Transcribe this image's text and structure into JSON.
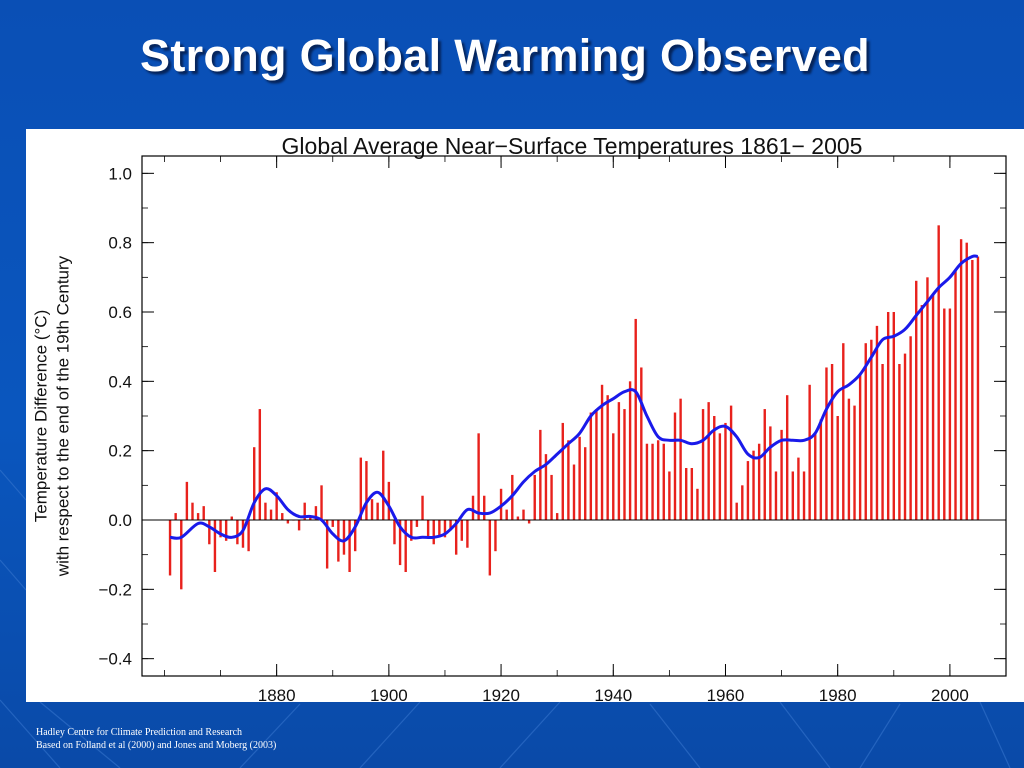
{
  "slide": {
    "title": "Strong Global Warming Observed",
    "footer_lines": [
      "Hadley Centre for Climate Prediction and Research",
      "Based on Folland et al (2000) and Jones and Moberg (2003)"
    ]
  },
  "colors": {
    "background": "#0a50b8",
    "bars": "#e8211c",
    "smooth_line": "#1a1aea",
    "axis": "#000000"
  },
  "chart_data": {
    "type": "bar",
    "title": "Global Average Near−Surface Temperatures 1861− 2005",
    "ylabel_lines": [
      "Temperature Difference (°C)",
      "with respect to the end of the 19th Century"
    ],
    "xlabel": "",
    "xlim": [
      1856,
      2010
    ],
    "ylim": [
      -0.45,
      1.05
    ],
    "xticks": [
      1880,
      1900,
      1920,
      1940,
      1960,
      1980,
      2000
    ],
    "yticks": [
      -0.4,
      -0.2,
      0.0,
      0.2,
      0.4,
      0.6,
      0.8,
      1.0
    ],
    "ytick_labels": [
      "−0.4",
      "−0.2",
      "0.0",
      "0.2",
      "0.4",
      "0.6",
      "0.8",
      "1.0"
    ],
    "grid": false,
    "series": [
      {
        "kind": "bar",
        "years": [
          1861,
          1862,
          1863,
          1864,
          1865,
          1866,
          1867,
          1868,
          1869,
          1870,
          1871,
          1872,
          1873,
          1874,
          1875,
          1876,
          1877,
          1878,
          1879,
          1880,
          1881,
          1882,
          1883,
          1884,
          1885,
          1886,
          1887,
          1888,
          1889,
          1890,
          1891,
          1892,
          1893,
          1894,
          1895,
          1896,
          1897,
          1898,
          1899,
          1900,
          1901,
          1902,
          1903,
          1904,
          1905,
          1906,
          1907,
          1908,
          1909,
          1910,
          1911,
          1912,
          1913,
          1914,
          1915,
          1916,
          1917,
          1918,
          1919,
          1920,
          1921,
          1922,
          1923,
          1924,
          1925,
          1926,
          1927,
          1928,
          1929,
          1930,
          1931,
          1932,
          1933,
          1934,
          1935,
          1936,
          1937,
          1938,
          1939,
          1940,
          1941,
          1942,
          1943,
          1944,
          1945,
          1946,
          1947,
          1948,
          1949,
          1950,
          1951,
          1952,
          1953,
          1954,
          1955,
          1956,
          1957,
          1958,
          1959,
          1960,
          1961,
          1962,
          1963,
          1964,
          1965,
          1966,
          1967,
          1968,
          1969,
          1970,
          1971,
          1972,
          1973,
          1974,
          1975,
          1976,
          1977,
          1978,
          1979,
          1980,
          1981,
          1982,
          1983,
          1984,
          1985,
          1986,
          1987,
          1988,
          1989,
          1990,
          1991,
          1992,
          1993,
          1994,
          1995,
          1996,
          1997,
          1998,
          1999,
          2000,
          2001,
          2002,
          2003,
          2004,
          2005
        ],
        "values": [
          -0.16,
          0.02,
          -0.2,
          0.11,
          0.05,
          0.02,
          0.04,
          -0.07,
          -0.15,
          -0.05,
          -0.06,
          0.01,
          -0.07,
          -0.08,
          -0.09,
          0.21,
          0.32,
          0.05,
          0.03,
          0.08,
          0.02,
          -0.01,
          0.0,
          -0.03,
          0.05,
          0.01,
          0.04,
          0.1,
          -0.14,
          -0.02,
          -0.12,
          -0.1,
          -0.15,
          -0.09,
          0.18,
          0.17,
          0.06,
          0.05,
          0.2,
          0.11,
          -0.07,
          -0.13,
          -0.15,
          -0.06,
          -0.02,
          0.07,
          -0.05,
          -0.07,
          -0.05,
          -0.05,
          -0.03,
          -0.1,
          -0.06,
          -0.08,
          0.07,
          0.25,
          0.07,
          -0.16,
          -0.09,
          0.09,
          0.03,
          0.13,
          0.01,
          0.03,
          -0.01,
          0.13,
          0.26,
          0.19,
          0.13,
          0.02,
          0.28,
          0.23,
          0.16,
          0.24,
          0.21,
          0.31,
          0.32,
          0.39,
          0.36,
          0.25,
          0.34,
          0.32,
          0.4,
          0.58,
          0.44,
          0.22,
          0.22,
          0.23,
          0.22,
          0.14,
          0.31,
          0.35,
          0.15,
          0.15,
          0.09,
          0.32,
          0.34,
          0.3,
          0.25,
          0.28,
          0.33,
          0.05,
          0.1,
          0.17,
          0.2,
          0.22,
          0.32,
          0.27,
          0.14,
          0.26,
          0.36,
          0.14,
          0.18,
          0.14,
          0.39,
          0.25,
          0.29,
          0.44,
          0.45,
          0.3,
          0.51,
          0.35,
          0.33,
          0.42,
          0.51,
          0.52,
          0.56,
          0.45,
          0.6,
          0.6,
          0.45,
          0.48,
          0.53,
          0.69,
          0.62,
          0.7,
          0.65,
          0.85,
          0.61,
          0.61,
          0.72,
          0.81,
          0.8,
          0.75,
          0.76
        ]
      },
      {
        "kind": "line",
        "years": [
          1861,
          1863,
          1866,
          1868,
          1870,
          1872,
          1874,
          1876,
          1878,
          1880,
          1882,
          1884,
          1886,
          1888,
          1890,
          1892,
          1894,
          1896,
          1898,
          1900,
          1902,
          1904,
          1906,
          1908,
          1910,
          1912,
          1914,
          1916,
          1918,
          1920,
          1922,
          1924,
          1926,
          1928,
          1930,
          1932,
          1934,
          1936,
          1938,
          1940,
          1942,
          1944,
          1946,
          1948,
          1950,
          1952,
          1954,
          1956,
          1958,
          1960,
          1962,
          1964,
          1966,
          1968,
          1970,
          1972,
          1974,
          1976,
          1978,
          1980,
          1982,
          1984,
          1986,
          1988,
          1990,
          1992,
          1994,
          1996,
          1998,
          2000,
          2002,
          2004,
          2005
        ],
        "values": [
          -0.05,
          -0.05,
          -0.01,
          -0.02,
          -0.04,
          -0.05,
          -0.03,
          0.05,
          0.09,
          0.07,
          0.03,
          0.01,
          0.01,
          0.0,
          -0.04,
          -0.06,
          -0.02,
          0.05,
          0.08,
          0.04,
          -0.02,
          -0.05,
          -0.05,
          -0.05,
          -0.04,
          -0.01,
          0.03,
          0.02,
          0.02,
          0.04,
          0.07,
          0.11,
          0.14,
          0.16,
          0.19,
          0.22,
          0.25,
          0.3,
          0.33,
          0.35,
          0.37,
          0.37,
          0.3,
          0.24,
          0.23,
          0.23,
          0.22,
          0.23,
          0.26,
          0.27,
          0.24,
          0.19,
          0.18,
          0.21,
          0.23,
          0.23,
          0.23,
          0.25,
          0.32,
          0.37,
          0.39,
          0.42,
          0.47,
          0.52,
          0.53,
          0.55,
          0.59,
          0.63,
          0.67,
          0.7,
          0.74,
          0.76,
          0.76
        ]
      }
    ]
  }
}
